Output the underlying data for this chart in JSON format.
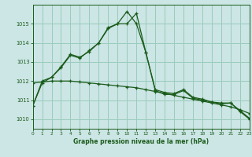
{
  "title": "Graphe pression niveau de la mer (hPa)",
  "background_color": "#cce5e5",
  "grid_color": "#99ccbb",
  "line_color": "#1a5c1a",
  "x_min": 0,
  "x_max": 23,
  "y_min": 1009.5,
  "y_max": 1016.0,
  "yticks": [
    1010,
    1011,
    1012,
    1013,
    1014,
    1015
  ],
  "xticks": [
    0,
    1,
    2,
    3,
    4,
    5,
    6,
    7,
    8,
    9,
    10,
    11,
    12,
    13,
    14,
    15,
    16,
    17,
    18,
    19,
    20,
    21,
    22,
    23
  ],
  "series1": [
    [
      0,
      1010.7
    ],
    [
      1,
      1011.9
    ],
    [
      2,
      1012.2
    ],
    [
      3,
      1012.7
    ],
    [
      4,
      1013.35
    ],
    [
      5,
      1013.2
    ],
    [
      6,
      1013.6
    ],
    [
      7,
      1014.0
    ],
    [
      8,
      1014.8
    ],
    [
      9,
      1015.0
    ],
    [
      10,
      1015.65
    ],
    [
      11,
      1015.0
    ],
    [
      12,
      1013.5
    ],
    [
      13,
      1011.5
    ],
    [
      14,
      1011.3
    ],
    [
      15,
      1011.3
    ],
    [
      16,
      1011.5
    ],
    [
      17,
      1011.1
    ],
    [
      18,
      1011.0
    ],
    [
      19,
      1010.9
    ],
    [
      20,
      1010.8
    ],
    [
      21,
      1010.85
    ],
    [
      22,
      1010.4
    ],
    [
      23,
      1010.0
    ]
  ],
  "series2": [
    [
      0,
      1010.7
    ],
    [
      1,
      1012.0
    ],
    [
      2,
      1012.2
    ],
    [
      3,
      1012.75
    ],
    [
      4,
      1013.4
    ],
    [
      5,
      1013.25
    ],
    [
      6,
      1013.55
    ],
    [
      7,
      1014.0
    ],
    [
      8,
      1014.75
    ],
    [
      9,
      1015.0
    ],
    [
      10,
      1015.0
    ],
    [
      11,
      1015.55
    ],
    [
      12,
      1013.5
    ],
    [
      13,
      1011.55
    ],
    [
      14,
      1011.4
    ],
    [
      15,
      1011.35
    ],
    [
      16,
      1011.55
    ],
    [
      17,
      1011.15
    ],
    [
      18,
      1011.05
    ],
    [
      19,
      1010.9
    ],
    [
      20,
      1010.85
    ],
    [
      21,
      1010.85
    ],
    [
      22,
      1010.45
    ],
    [
      23,
      1010.05
    ]
  ],
  "series3": [
    [
      0,
      1011.9
    ],
    [
      1,
      1011.95
    ],
    [
      2,
      1012.0
    ],
    [
      3,
      1012.0
    ],
    [
      4,
      1012.0
    ],
    [
      5,
      1011.95
    ],
    [
      6,
      1011.9
    ],
    [
      7,
      1011.85
    ],
    [
      8,
      1011.8
    ],
    [
      9,
      1011.75
    ],
    [
      10,
      1011.7
    ],
    [
      11,
      1011.65
    ],
    [
      12,
      1011.55
    ],
    [
      13,
      1011.45
    ],
    [
      14,
      1011.35
    ],
    [
      15,
      1011.25
    ],
    [
      16,
      1011.15
    ],
    [
      17,
      1011.05
    ],
    [
      18,
      1010.95
    ],
    [
      19,
      1010.85
    ],
    [
      20,
      1010.75
    ],
    [
      21,
      1010.65
    ],
    [
      22,
      1010.5
    ],
    [
      23,
      1010.3
    ]
  ]
}
